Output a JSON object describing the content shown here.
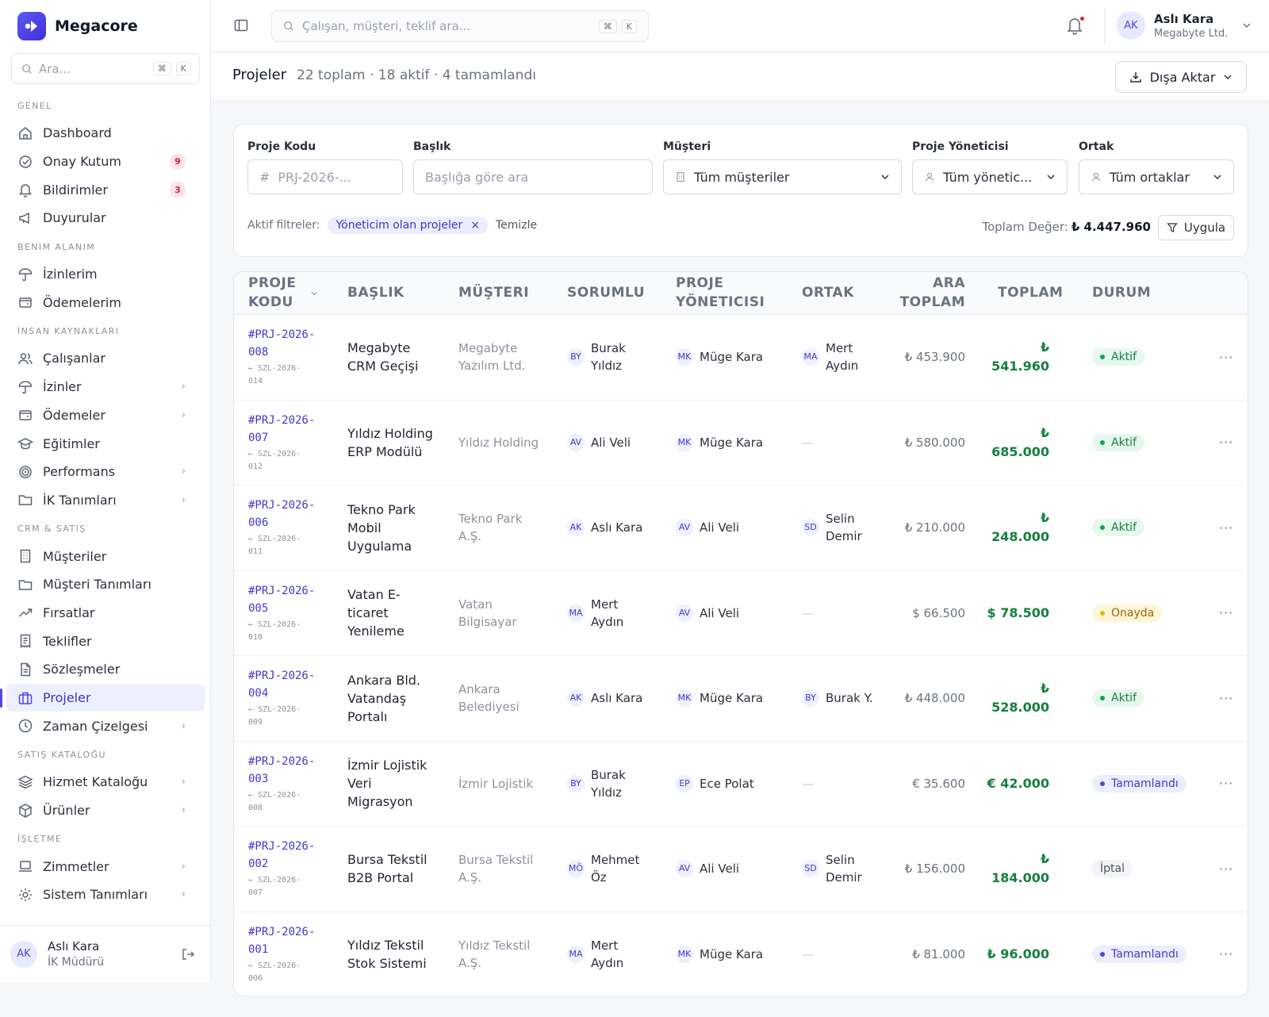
{
  "app": {
    "brand": "Megacore"
  },
  "sidebar": {
    "search_placeholder": "Ara...",
    "search_kbd": [
      "⌘",
      "K"
    ],
    "sections": [
      {
        "title": "GENEL",
        "items": [
          {
            "label": "Dashboard",
            "icon": "home-icon",
            "badge": "",
            "chevron": false
          },
          {
            "label": "Onay Kutum",
            "icon": "check-circle-icon",
            "badge": "9",
            "chevron": false
          },
          {
            "label": "Bildirimler",
            "icon": "bell-icon",
            "badge": "3",
            "chevron": false
          },
          {
            "label": "Duyurular",
            "icon": "megaphone-icon",
            "badge": "",
            "chevron": false
          }
        ]
      },
      {
        "title": "BENIM ALANIM",
        "items": [
          {
            "label": "İzinlerim",
            "icon": "umbrella-icon",
            "badge": "",
            "chevron": false
          },
          {
            "label": "Ödemelerim",
            "icon": "wallet-icon",
            "badge": "",
            "chevron": false
          }
        ]
      },
      {
        "title": "İNSAN KAYNAKLARI",
        "items": [
          {
            "label": "Çalışanlar",
            "icon": "users-icon",
            "badge": "",
            "chevron": false
          },
          {
            "label": "İzinler",
            "icon": "umbrella-icon",
            "badge": "",
            "chevron": true
          },
          {
            "label": "Ödemeler",
            "icon": "wallet-icon",
            "badge": "",
            "chevron": true
          },
          {
            "label": "Eğitimler",
            "icon": "graduation-cap-icon",
            "badge": "",
            "chevron": false
          },
          {
            "label": "Performans",
            "icon": "target-icon",
            "badge": "",
            "chevron": true
          },
          {
            "label": "İK Tanımları",
            "icon": "folder-icon",
            "badge": "",
            "chevron": true
          }
        ]
      },
      {
        "title": "CRM & SATIŞ",
        "items": [
          {
            "label": "Müşteriler",
            "icon": "building-icon",
            "badge": "",
            "chevron": false
          },
          {
            "label": "Müşteri Tanımları",
            "icon": "folder-icon",
            "badge": "",
            "chevron": false
          },
          {
            "label": "Fırsatlar",
            "icon": "trending-up-icon",
            "badge": "",
            "chevron": false
          },
          {
            "label": "Teklifler",
            "icon": "receipt-icon",
            "badge": "",
            "chevron": false
          },
          {
            "label": "Sözleşmeler",
            "icon": "document-icon",
            "badge": "",
            "chevron": false
          },
          {
            "label": "Projeler",
            "icon": "briefcase-icon",
            "badge": "",
            "chevron": false,
            "active": true
          },
          {
            "label": "Zaman Çizelgesi",
            "icon": "clock-icon",
            "badge": "",
            "chevron": true
          }
        ]
      },
      {
        "title": "SATIŞ KATALOĞU",
        "items": [
          {
            "label": "Hizmet Kataloğu",
            "icon": "layers-icon",
            "badge": "",
            "chevron": true
          },
          {
            "label": "Ürünler",
            "icon": "package-icon",
            "badge": "",
            "chevron": true
          }
        ]
      },
      {
        "title": "İŞLETME",
        "items": [
          {
            "label": "Zimmetler",
            "icon": "laptop-icon",
            "badge": "",
            "chevron": true
          },
          {
            "label": "Sistem Tanımları",
            "icon": "gear-icon",
            "badge": "",
            "chevron": true
          }
        ]
      }
    ],
    "user": {
      "initials": "AK",
      "name": "Aslı Kara",
      "role": "İK Müdürü"
    }
  },
  "topbar": {
    "search_placeholder": "Çalışan, müşteri, teklif ara...",
    "search_kbd": [
      "⌘",
      "K"
    ],
    "user": {
      "initials": "AK",
      "name": "Aslı Kara",
      "org": "Megabyte Ltd."
    }
  },
  "page": {
    "title": "Projeler",
    "stats": "22 toplam · 18 aktif · 4 tamamlandı",
    "export_label": "Dışa Aktar"
  },
  "filters": {
    "code": {
      "label": "Proje Kodu",
      "placeholder": "PRJ-2026-..."
    },
    "title": {
      "label": "Başlık",
      "placeholder": "Başlığa göre ara"
    },
    "customer": {
      "label": "Müşteri",
      "value": "Tüm müşteriler"
    },
    "manager": {
      "label": "Proje Yöneticisi",
      "value": "Tüm yönetic..."
    },
    "partner": {
      "label": "Ortak",
      "value": "Tüm ortaklar"
    },
    "active_label": "Aktif filtreler:",
    "active_chip": "Yöneticim olan projeler",
    "clear_label": "Temizle",
    "total_label": "Toplam Değer:",
    "total_value": "₺ 4.447.960",
    "apply_label": "Uygula"
  },
  "table": {
    "headers": {
      "code": "PROJE KODU",
      "title": "BAŞLIK",
      "customer": "MÜŞTERI",
      "owner": "SORUMLU",
      "manager": "PROJE YÖNETICISI",
      "partner": "ORTAK",
      "subtotal": "ARA TOPLAM",
      "total": "TOPLAM",
      "status": "DURUM"
    },
    "rows": [
      {
        "code": "#PRJ-2026-008",
        "contract": "← SZL-2026-014",
        "title": "Megabyte CRM Geçişi",
        "customer": "Megabyte Yazılım Ltd.",
        "owner_i": "BY",
        "owner": "Burak Yıldız",
        "manager_i": "MK",
        "manager": "Müge Kara",
        "partner_i": "MA",
        "partner": "Mert Aydın",
        "subtotal": "₺ 453.900",
        "total": "₺ 541.960",
        "status": "Aktif",
        "status_type": "aktif"
      },
      {
        "code": "#PRJ-2026-007",
        "contract": "← SZL-2026-012",
        "title": "Yıldız Holding ERP Modülü",
        "customer": "Yıldız Holding",
        "owner_i": "AV",
        "owner": "Ali Veli",
        "manager_i": "MK",
        "manager": "Müge Kara",
        "partner_i": "",
        "partner": "—",
        "subtotal": "₺ 580.000",
        "total": "₺ 685.000",
        "status": "Aktif",
        "status_type": "aktif"
      },
      {
        "code": "#PRJ-2026-006",
        "contract": "← SZL-2026-011",
        "title": "Tekno Park Mobil Uygulama",
        "customer": "Tekno Park A.Ş.",
        "owner_i": "AK",
        "owner": "Aslı Kara",
        "manager_i": "AV",
        "manager": "Ali Veli",
        "partner_i": "SD",
        "partner": "Selin Demir",
        "subtotal": "₺ 210.000",
        "total": "₺ 248.000",
        "status": "Aktif",
        "status_type": "aktif"
      },
      {
        "code": "#PRJ-2026-005",
        "contract": "← SZL-2026-010",
        "title": "Vatan E-ticaret Yenileme",
        "customer": "Vatan Bilgisayar",
        "owner_i": "MA",
        "owner": "Mert Aydın",
        "manager_i": "AV",
        "manager": "Ali Veli",
        "partner_i": "",
        "partner": "—",
        "subtotal": "$ 66.500",
        "total": "$ 78.500",
        "status": "Onayda",
        "status_type": "onay"
      },
      {
        "code": "#PRJ-2026-004",
        "contract": "← SZL-2026-009",
        "title": "Ankara Bld. Vatandaş Portalı",
        "customer": "Ankara Belediyesi",
        "owner_i": "AK",
        "owner": "Aslı Kara",
        "manager_i": "MK",
        "manager": "Müge Kara",
        "partner_i": "BY",
        "partner": "Burak Y.",
        "subtotal": "₺ 448.000",
        "total": "₺ 528.000",
        "status": "Aktif",
        "status_type": "aktif"
      },
      {
        "code": "#PRJ-2026-003",
        "contract": "← SZL-2026-008",
        "title": "İzmir Lojistik Veri Migrasyon",
        "customer": "İzmir Lojistik",
        "owner_i": "BY",
        "owner": "Burak Yıldız",
        "manager_i": "EP",
        "manager": "Ece Polat",
        "partner_i": "",
        "partner": "—",
        "subtotal": "€ 35.600",
        "total": "€ 42.000",
        "status": "Tamamlandı",
        "status_type": "tam"
      },
      {
        "code": "#PRJ-2026-002",
        "contract": "← SZL-2026-007",
        "title": "Bursa Tekstil B2B Portal",
        "customer": "Bursa Tekstil A.Ş.",
        "owner_i": "MÖ",
        "owner": "Mehmet Öz",
        "manager_i": "AV",
        "manager": "Ali Veli",
        "partner_i": "SD",
        "partner": "Selin Demir",
        "subtotal": "₺ 156.000",
        "total": "₺ 184.000",
        "status": "İptal",
        "status_type": "iptal"
      },
      {
        "code": "#PRJ-2026-001",
        "contract": "← SZL-2026-006",
        "title": "Yıldız Tekstil Stok Sistemi",
        "customer": "Yıldız Tekstil A.Ş.",
        "owner_i": "MA",
        "owner": "Mert Aydın",
        "manager_i": "MK",
        "manager": "Müge Kara",
        "partner_i": "",
        "partner": "—",
        "subtotal": "₺ 81.000",
        "total": "₺ 96.000",
        "status": "Tamamlandı",
        "status_type": "tam"
      }
    ]
  },
  "colors": {
    "accent": "#4f46e5",
    "success": "#15803d",
    "warning": "#eab308",
    "danger": "#e11d48"
  }
}
